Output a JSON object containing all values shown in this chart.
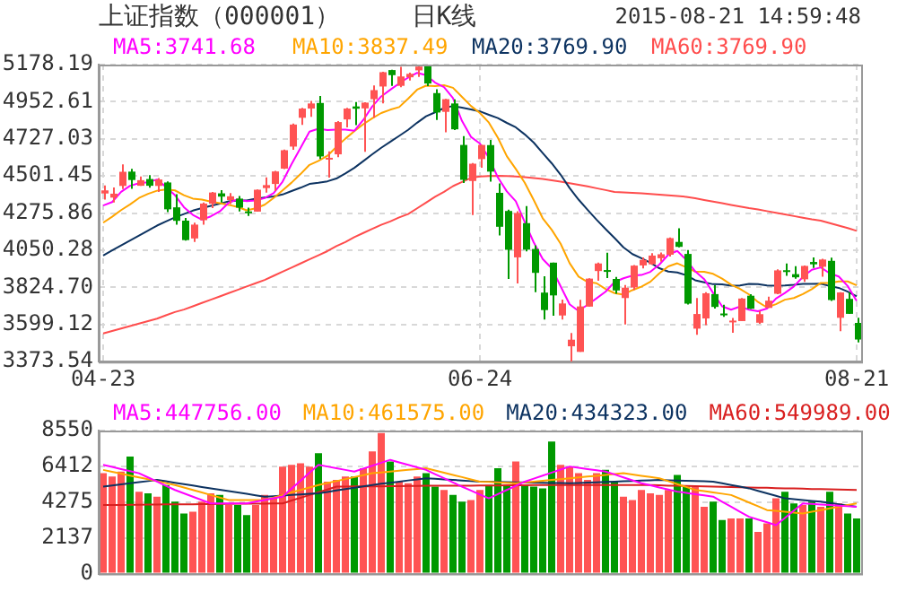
{
  "chart_data": [
    {
      "type": "candlestick",
      "title": "上证指数（000001）",
      "subtitle": "日K线",
      "annotations": [
        "2015-08-21 14:59:48"
      ],
      "categories": [
        "04-23",
        null,
        null,
        null,
        null,
        null,
        null,
        null,
        null,
        null,
        null,
        null,
        null,
        null,
        null,
        null,
        null,
        null,
        null,
        null,
        null,
        null,
        null,
        null,
        null,
        null,
        null,
        null,
        null,
        null,
        null,
        null,
        null,
        null,
        null,
        null,
        null,
        null,
        null,
        null,
        null,
        null,
        "06-24",
        null,
        null,
        null,
        null,
        null,
        null,
        null,
        null,
        null,
        null,
        null,
        null,
        null,
        null,
        null,
        null,
        null,
        null,
        null,
        null,
        null,
        null,
        null,
        null,
        null,
        null,
        null,
        null,
        null,
        null,
        null,
        null,
        null,
        null,
        null,
        null,
        null,
        null,
        null,
        null,
        null,
        "08-21"
      ],
      "ohlc": [
        [
          4395,
          4444,
          4358,
          4414
        ],
        [
          4370,
          4432,
          4341,
          4394
        ],
        [
          4441,
          4572,
          4422,
          4527
        ],
        [
          4528,
          4545,
          4424,
          4477
        ],
        [
          4442,
          4499,
          4441,
          4476
        ],
        [
          4483,
          4507,
          4431,
          4442
        ],
        [
          4441,
          4489,
          4404,
          4480
        ],
        [
          4462,
          4469,
          4282,
          4299
        ],
        [
          4311,
          4391,
          4205,
          4229
        ],
        [
          4230,
          4246,
          4109,
          4112
        ],
        [
          4122,
          4218,
          4101,
          4206
        ],
        [
          4233,
          4340,
          4205,
          4334
        ],
        [
          4333,
          4405,
          4307,
          4401
        ],
        [
          4396,
          4415,
          4341,
          4376
        ],
        [
          4355,
          4398,
          4331,
          4378
        ],
        [
          4364,
          4380,
          4286,
          4309
        ],
        [
          4286,
          4309,
          4259,
          4283
        ],
        [
          4285,
          4419,
          4285,
          4418
        ],
        [
          4428,
          4493,
          4400,
          4446
        ],
        [
          4453,
          4532,
          4410,
          4529
        ],
        [
          4546,
          4662,
          4543,
          4658
        ],
        [
          4680,
          4820,
          4661,
          4814
        ],
        [
          4855,
          4915,
          4812,
          4911
        ],
        [
          4911,
          4958,
          4861,
          4942
        ],
        [
          4945,
          4987,
          4605,
          4620
        ],
        [
          4603,
          4651,
          4492,
          4612
        ],
        [
          4633,
          4835,
          4616,
          4829
        ],
        [
          4845,
          4915,
          4797,
          4911
        ],
        [
          4924,
          4951,
          4811,
          4910
        ],
        [
          4912,
          4950,
          4648,
          4947
        ],
        [
          4968,
          5052,
          4856,
          5023
        ],
        [
          5045,
          5135,
          4942,
          5132
        ],
        [
          5145,
          5147,
          5049,
          5114
        ],
        [
          5049,
          5164,
          5040,
          5106
        ],
        [
          5101,
          5129,
          5081,
          5122
        ],
        [
          5143,
          5178.19,
          5103,
          5166
        ],
        [
          5174,
          5176,
          5048,
          5063
        ],
        [
          5005,
          5029,
          4842,
          4887
        ],
        [
          4891,
          4970,
          4767,
          4968
        ],
        [
          4942,
          4967,
          4780,
          4785
        ],
        [
          4690,
          4744,
          4459,
          4478
        ],
        [
          4471,
          4580,
          4264,
          4576
        ],
        [
          4604,
          4691,
          4552,
          4690
        ],
        [
          4689,
          4721,
          4467,
          4528
        ],
        [
          4399,
          4456,
          4140,
          4193
        ],
        [
          4289,
          4297,
          3876,
          4053
        ],
        [
          4007,
          4287,
          3848,
          4277
        ],
        [
          4215,
          4318,
          4043,
          4054
        ],
        [
          4058,
          4080,
          3796,
          3913
        ],
        [
          3793,
          3892,
          3629,
          3687
        ],
        [
          3975,
          3976,
          3653,
          3776
        ],
        [
          3654,
          3751,
          3629,
          3727
        ],
        [
          3467,
          3548,
          3373.54,
          3507
        ],
        [
          3433,
          3749,
          3433,
          3709
        ],
        [
          3708,
          3880,
          3708,
          3878
        ],
        [
          3924,
          3975,
          3865,
          3970
        ],
        [
          3930,
          4035,
          3882,
          3924
        ],
        [
          3876,
          3888,
          3786,
          3806
        ],
        [
          3760,
          3839,
          3600,
          3823
        ],
        [
          3824,
          3960,
          3809,
          3957
        ],
        [
          3958,
          4007,
          3940,
          3992
        ],
        [
          3965,
          4032,
          3962,
          4018
        ],
        [
          4002,
          4036,
          3981,
          4026
        ],
        [
          4023,
          4128,
          4012,
          4124
        ],
        [
          4101,
          4184,
          4068,
          4071
        ],
        [
          4028,
          4051,
          3720,
          3726
        ],
        [
          3574,
          3760,
          3537,
          3663
        ],
        [
          3636,
          3795,
          3595,
          3789
        ],
        [
          3784,
          3838,
          3696,
          3706
        ],
        [
          3666,
          3719,
          3646,
          3664
        ],
        [
          3614,
          3639,
          3549,
          3623
        ],
        [
          3620,
          3760,
          3620,
          3757
        ],
        [
          3774,
          3783,
          3694,
          3695
        ],
        [
          3610,
          3681,
          3604,
          3662
        ],
        [
          3700,
          3768,
          3700,
          3744
        ],
        [
          3786,
          3934,
          3783,
          3928
        ],
        [
          3929,
          3970,
          3895,
          3928
        ],
        [
          3905,
          3954,
          3877,
          3886
        ],
        [
          3874,
          3958,
          3858,
          3955
        ],
        [
          3979,
          4007,
          3942,
          3965
        ],
        [
          3950,
          3998,
          3890,
          3994
        ],
        [
          3986,
          4006,
          3743,
          3748
        ],
        [
          3640,
          3795,
          3559,
          3794
        ],
        [
          3755,
          3794,
          3663,
          3664
        ],
        [
          3609,
          3640,
          3491,
          3508
        ]
      ],
      "colors": [
        "#ff5353",
        "#ff5353",
        "#ff5353",
        "#009900",
        "#ff5353",
        "#009900",
        "#ff5353",
        "#009900",
        "#009900",
        "#009900",
        "#ff5353",
        "#ff5353",
        "#ff5353",
        "#009900",
        "#ff5353",
        "#009900",
        "#009900",
        "#ff5353",
        "#ff5353",
        "#ff5353",
        "#ff5353",
        "#ff5353",
        "#ff5353",
        "#ff5353",
        "#009900",
        "#ff5353",
        "#ff5353",
        "#ff5353",
        "#009900",
        "#ff5353",
        "#ff5353",
        "#ff5353",
        "#009900",
        "#ff5353",
        "#ff5353",
        "#ff5353",
        "#009900",
        "#009900",
        "#ff5353",
        "#009900",
        "#009900",
        "#ff5353",
        "#ff5353",
        "#009900",
        "#009900",
        "#009900",
        "#ff5353",
        "#009900",
        "#009900",
        "#009900",
        "#009900",
        "#ff5353",
        "#ff5353",
        "#ff5353",
        "#ff5353",
        "#ff5353",
        "#009900",
        "#009900",
        "#ff5353",
        "#ff5353",
        "#ff5353",
        "#ff5353",
        "#ff5353",
        "#ff5353",
        "#009900",
        "#009900",
        "#ff5353",
        "#ff5353",
        "#009900",
        "#009900",
        "#ff5353",
        "#ff5353",
        "#009900",
        "#ff5353",
        "#ff5353",
        "#ff5353",
        "#009900",
        "#009900",
        "#ff5353",
        "#009900",
        "#ff5353",
        "#009900",
        "#ff5353",
        "#009900",
        "#009900"
      ],
      "series": [
        {
          "type": "line",
          "name": "MA5:3741.68",
          "color": "#ff00ff",
          "values": [
            4322,
            4343,
            4405,
            4442,
            4458,
            4463,
            4480,
            4435,
            4385,
            4312,
            4265,
            4236,
            4256,
            4286,
            4339,
            4360,
            4349,
            4353,
            4367,
            4397,
            4467,
            4573,
            4672,
            4771,
            4789,
            4780,
            4783,
            4783,
            4776,
            4842,
            4924,
            4985,
            5025,
            5064,
            5099,
            5128,
            5114,
            5069,
            5041,
            4974,
            4836,
            4739,
            4699,
            4611,
            4493,
            4408,
            4348,
            4221,
            4098,
            3997,
            3941,
            3831,
            3722,
            3681,
            3719,
            3758,
            3798,
            3857,
            3880,
            3896,
            3900,
            3919,
            3963,
            4023,
            4046,
            3993,
            3922,
            3875,
            3791,
            3710,
            3689,
            3708,
            3689,
            3680,
            3696,
            3757,
            3791,
            3830,
            3888,
            3932,
            3946,
            3910,
            3891,
            3833,
            3742
          ]
        },
        {
          "type": "line",
          "name": "MA10:3837.49",
          "color": "#ffa500",
          "values": [
            4218,
            4254,
            4294,
            4329,
            4368,
            4393,
            4412,
            4420,
            4414,
            4385,
            4364,
            4358,
            4346,
            4336,
            4326,
            4313,
            4293,
            4305,
            4327,
            4368,
            4414,
            4461,
            4513,
            4569,
            4593,
            4624,
            4678,
            4728,
            4774,
            4816,
            4852,
            4884,
            4904,
            4920,
            4971,
            5026,
            5050,
            5047,
            5053,
            5037,
            4982,
            4927,
            4884,
            4826,
            4734,
            4622,
            4544,
            4460,
            4355,
            4245,
            4175,
            4090,
            3972,
            3890,
            3858,
            3850,
            3815,
            3790,
            3781,
            3808,
            3829,
            3859,
            3910,
            3952,
            3971,
            3947,
            3921,
            3919,
            3907,
            3878,
            3841,
            3815,
            3782,
            3736,
            3703,
            3723,
            3750,
            3760,
            3784,
            3814,
            3852,
            3851,
            3861,
            3861,
            3837
          ]
        },
        {
          "type": "line",
          "name": "MA20:3769.90",
          "color": "#0d3361",
          "values": [
            4018,
            4050,
            4080,
            4110,
            4140,
            4170,
            4200,
            4225,
            4250,
            4270,
            4291,
            4306,
            4320,
            4333,
            4347,
            4353,
            4353,
            4363,
            4371,
            4377,
            4389,
            4410,
            4430,
            4453,
            4460,
            4469,
            4486,
            4517,
            4551,
            4592,
            4633,
            4673,
            4709,
            4745,
            4782,
            4825,
            4864,
            4888,
            4914,
            4927,
            4917,
            4906,
            4894,
            4873,
            4853,
            4824,
            4797,
            4754,
            4704,
            4641,
            4579,
            4509,
            4428,
            4358,
            4296,
            4236,
            4180,
            4125,
            4068,
            4027,
            4002,
            3975,
            3941,
            3921,
            3915,
            3899,
            3868,
            3855,
            3844,
            3843,
            3835,
            3837,
            3846,
            3844,
            3837,
            3835,
            3836,
            3840,
            3846,
            3846,
            3847,
            3833,
            3822,
            3799,
            3770
          ]
        },
        {
          "type": "line",
          "name": "MA60:3769.90",
          "color": "#ff4d4d",
          "values": [
            3545,
            3560,
            3575,
            3590,
            3605,
            3620,
            3635,
            3655,
            3675,
            3690,
            3710,
            3730,
            3750,
            3770,
            3790,
            3810,
            3830,
            3850,
            3870,
            3895,
            3920,
            3945,
            3970,
            3995,
            4020,
            4045,
            4075,
            4100,
            4130,
            4155,
            4180,
            4205,
            4225,
            4250,
            4270,
            4305,
            4340,
            4375,
            4405,
            4440,
            4465,
            4490,
            4498,
            4501,
            4502,
            4501,
            4498,
            4494,
            4489,
            4483,
            4475,
            4467,
            4458,
            4448,
            4438,
            4427,
            4416,
            4405,
            4402,
            4399,
            4396,
            4392,
            4388,
            4384,
            4380,
            4375,
            4366,
            4356,
            4346,
            4336,
            4326,
            4316,
            4306,
            4298,
            4288,
            4278,
            4268,
            4258,
            4248,
            4238,
            4230,
            4215,
            4200,
            4185,
            4168
          ]
        }
      ],
      "ylim": [
        3373.54,
        5178.19
      ],
      "yticks": [
        5178.19,
        4952.61,
        4727.03,
        4501.45,
        4275.86,
        4050.28,
        {
          "value": 3824.7,
          "label": "3824.70"
        },
        3599.12,
        3373.54
      ],
      "grid": true,
      "legend": "top",
      "marker": "none"
    },
    {
      "type": "bar",
      "categories": [
        null,
        null,
        null,
        null,
        null,
        null,
        null,
        null,
        null,
        null,
        null,
        null,
        null,
        null,
        null,
        null,
        null,
        null,
        null,
        null,
        null,
        null,
        null,
        null,
        null,
        null,
        null,
        null,
        null,
        null,
        null,
        null,
        null,
        null,
        null,
        null,
        null,
        null,
        null,
        null,
        null,
        null,
        null,
        null,
        null,
        null,
        null,
        null,
        null,
        null,
        null,
        null,
        null,
        null,
        null,
        null,
        null,
        null,
        null,
        null,
        null,
        null,
        null,
        null,
        null,
        null,
        null,
        null,
        null,
        null,
        null,
        null,
        null,
        null,
        null,
        null,
        null,
        null,
        null,
        null,
        null,
        null,
        null,
        null,
        null
      ],
      "values": [
        6000,
        5800,
        6100,
        7000,
        4900,
        4800,
        4600,
        5300,
        4300,
        3600,
        3700,
        4300,
        4800,
        4700,
        4100,
        4100,
        3500,
        4100,
        4700,
        4500,
        6400,
        6500,
        6600,
        6400,
        7200,
        5500,
        5600,
        5800,
        5800,
        6300,
        7300,
        8400,
        6700,
        5500,
        5400,
        5800,
        6000,
        5200,
        5000,
        4700,
        4300,
        4400,
        5000,
        5300,
        6300,
        5300,
        6700,
        5300,
        5200,
        5100,
        7900,
        6500,
        6400,
        6000,
        5600,
        6000,
        6200,
        5500,
        4600,
        4400,
        5000,
        4800,
        4700,
        5000,
        5900,
        5200,
        5200,
        4000,
        4300,
        3200,
        3300,
        3300,
        3300,
        2500,
        3000,
        4500,
        4900,
        4200,
        4100,
        4300,
        4000,
        4900,
        4200,
        3600,
        3300
      ],
      "colors": [
        "#ff5353",
        "#ff5353",
        "#ff5353",
        "#009900",
        "#ff5353",
        "#009900",
        "#ff5353",
        "#009900",
        "#009900",
        "#009900",
        "#ff5353",
        "#ff5353",
        "#ff5353",
        "#009900",
        "#ff5353",
        "#009900",
        "#009900",
        "#ff5353",
        "#ff5353",
        "#ff5353",
        "#ff5353",
        "#ff5353",
        "#ff5353",
        "#ff5353",
        "#009900",
        "#ff5353",
        "#ff5353",
        "#ff5353",
        "#009900",
        "#ff5353",
        "#ff5353",
        "#ff5353",
        "#009900",
        "#ff5353",
        "#ff5353",
        "#ff5353",
        "#009900",
        "#009900",
        "#ff5353",
        "#009900",
        "#009900",
        "#ff5353",
        "#ff5353",
        "#009900",
        "#009900",
        "#009900",
        "#ff5353",
        "#009900",
        "#009900",
        "#009900",
        "#009900",
        "#ff5353",
        "#ff5353",
        "#ff5353",
        "#ff5353",
        "#ff5353",
        "#009900",
        "#009900",
        "#ff5353",
        "#ff5353",
        "#ff5353",
        "#ff5353",
        "#ff5353",
        "#ff5353",
        "#009900",
        "#009900",
        "#ff5353",
        "#ff5353",
        "#009900",
        "#009900",
        "#ff5353",
        "#ff5353",
        "#009900",
        "#ff5353",
        "#ff5353",
        "#ff5353",
        "#009900",
        "#009900",
        "#ff5353",
        "#009900",
        "#ff5353",
        "#009900",
        "#ff5353",
        "#009900",
        "#009900"
      ],
      "series": [
        {
          "type": "line",
          "name": "MA5:447756.00",
          "color": "#ff00ff",
          "values": [
            6500,
            6380,
            6250,
            6130,
            6000,
            5750,
            5500,
            5250,
            5000,
            4800,
            4600,
            4400,
            4200,
            4200,
            4200,
            4200,
            4200,
            4300,
            4400,
            4500,
            4600,
            5080,
            5550,
            6030,
            6500,
            6400,
            6300,
            6200,
            6100,
            6280,
            6450,
            6630,
            6800,
            6650,
            6500,
            6350,
            6200,
            5950,
            5700,
            5450,
            5200,
            4970,
            4730,
            4500,
            4750,
            5000,
            5250,
            5500,
            5680,
            5860,
            6040,
            6220,
            6400,
            6330,
            6250,
            6180,
            6100,
            5930,
            5750,
            5580,
            5400,
            5280,
            5150,
            5030,
            4900,
            4830,
            4750,
            4680,
            4600,
            4300,
            4000,
            3700,
            3400,
            3230,
            3070,
            2900,
            3330,
            3770,
            4200,
            4170,
            4130,
            4100,
            4070,
            4030,
            4000
          ]
        },
        {
          "type": "line",
          "name": "MA10:461575.00",
          "color": "#ffa500",
          "values": [
            6200,
            6090,
            5980,
            5860,
            5750,
            5640,
            5530,
            5410,
            5300,
            5150,
            5000,
            4850,
            4700,
            4550,
            4400,
            4400,
            4400,
            4400,
            4400,
            4550,
            4700,
            4850,
            5000,
            5150,
            5300,
            5420,
            5530,
            5650,
            5770,
            5880,
            6000,
            6050,
            6100,
            6150,
            6200,
            6250,
            6300,
            6170,
            6030,
            5900,
            5770,
            5630,
            5500,
            5480,
            5450,
            5430,
            5400,
            5450,
            5500,
            5550,
            5600,
            5650,
            5700,
            5750,
            5800,
            5850,
            5900,
            5950,
            6000,
            5930,
            5850,
            5780,
            5700,
            5530,
            5350,
            5180,
            5000,
            4930,
            4850,
            4780,
            4700,
            4480,
            4250,
            4030,
            3800,
            3750,
            3700,
            3650,
            3600,
            3700,
            3800,
            3900,
            4000,
            4100,
            4200
          ]
        },
        {
          "type": "line",
          "name": "MA20:434323.00",
          "color": "#0d3361",
          "values": [
            5200,
            5270,
            5330,
            5400,
            5470,
            5530,
            5600,
            5520,
            5430,
            5350,
            5270,
            5180,
            5100,
            5020,
            4930,
            4850,
            4770,
            4680,
            4600,
            4630,
            4670,
            4700,
            4730,
            4770,
            4800,
            4880,
            4970,
            5050,
            5130,
            5220,
            5300,
            5370,
            5430,
            5500,
            5570,
            5630,
            5700,
            5670,
            5630,
            5600,
            5570,
            5530,
            5500,
            5490,
            5480,
            5470,
            5460,
            5450,
            5440,
            5430,
            5420,
            5410,
            5400,
            5420,
            5440,
            5460,
            5480,
            5500,
            5520,
            5540,
            5560,
            5580,
            5600,
            5580,
            5570,
            5550,
            5530,
            5520,
            5500,
            5400,
            5300,
            5200,
            5100,
            4950,
            4800,
            4650,
            4500,
            4450,
            4400,
            4350,
            4300,
            4230,
            4150,
            4080,
            4000
          ]
        },
        {
          "type": "line",
          "name": "MA60:549989.00",
          "color": "#d92020",
          "values": [
            4100,
            4110,
            4110,
            4120,
            4120,
            4130,
            4130,
            4140,
            4140,
            4150,
            4150,
            4160,
            4160,
            4170,
            4170,
            4180,
            4180,
            4190,
            4190,
            4200,
            4200,
            4370,
            4530,
            4700,
            4870,
            5030,
            5200,
            5200,
            5210,
            5210,
            5220,
            5220,
            5230,
            5230,
            5240,
            5240,
            5250,
            5250,
            5250,
            5260,
            5260,
            5260,
            5270,
            5270,
            5270,
            5280,
            5280,
            5280,
            5290,
            5290,
            5290,
            5290,
            5300,
            5300,
            5300,
            5300,
            5300,
            5300,
            5300,
            5300,
            5300,
            5290,
            5280,
            5260,
            5250,
            5240,
            5230,
            5210,
            5200,
            5190,
            5180,
            5160,
            5150,
            5140,
            5130,
            5110,
            5100,
            5090,
            5080,
            5060,
            5050,
            5040,
            5030,
            5010,
            5000
          ]
        }
      ],
      "ylim": [
        0,
        8550
      ],
      "yticks": [
        0,
        2137,
        4275,
        6412,
        8550
      ],
      "grid": "y",
      "legend": "top",
      "marker": "none",
      "tick_labels": "y"
    }
  ]
}
